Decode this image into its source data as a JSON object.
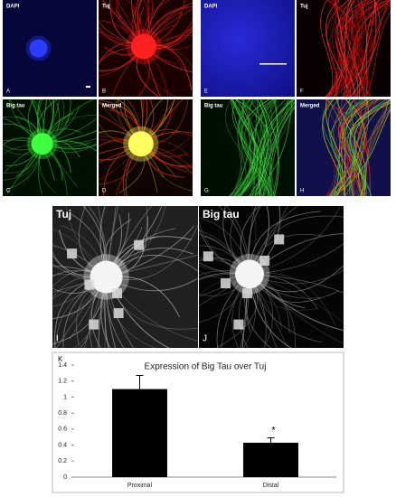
{
  "panels": [
    {
      "letter": "A",
      "label": "DAPI"
    },
    {
      "letter": "B",
      "label": "Tuj"
    },
    {
      "letter": "C",
      "label": "Big tau"
    },
    {
      "letter": "D",
      "label": "Merged"
    },
    {
      "letter": "E",
      "label": "DAPI"
    },
    {
      "letter": "F",
      "label": "Tuj"
    },
    {
      "letter": "G",
      "label": "Big tau"
    },
    {
      "letter": "H",
      "label": "Merged"
    },
    {
      "letter": "I",
      "label": "Tuj"
    },
    {
      "letter": "J",
      "label": "Big tau"
    }
  ],
  "chart_data": {
    "type": "bar",
    "panel_label": "K",
    "title": "Expression of Big Tau over Tuj",
    "categories": [
      "Proximal",
      "Distal"
    ],
    "values": [
      1.1,
      0.43
    ],
    "errors": [
      0.17,
      0.06
    ],
    "significance_labels": [
      null,
      "*"
    ],
    "color": "#000000",
    "ylim": [
      0,
      1.4
    ],
    "yticks": [
      0,
      0.2,
      0.4,
      0.6,
      0.8,
      1,
      1.2,
      1.4
    ]
  }
}
